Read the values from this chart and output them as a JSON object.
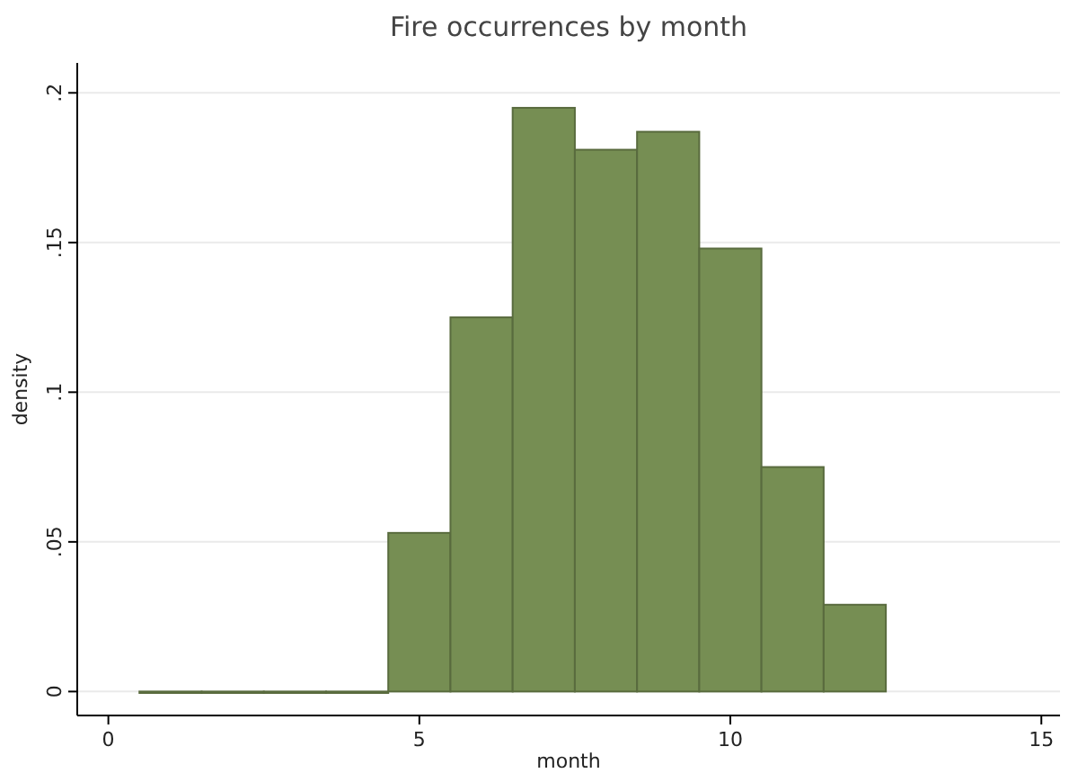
{
  "chart_data": {
    "type": "histogram",
    "title": "Fire occurrences by month",
    "xlabel": "month",
    "ylabel": "density",
    "bins": [
      0.5,
      1.5,
      2.5,
      3.5,
      4.5,
      5.5,
      6.5,
      7.5,
      8.5,
      9.5,
      10.5,
      11.5,
      12.5
    ],
    "values": [
      0,
      0,
      0,
      0,
      0.053,
      0.125,
      0.195,
      0.181,
      0.187,
      0.148,
      0.075,
      0.029
    ],
    "color": "#768e53",
    "xlim": [
      -0.5,
      15.3
    ],
    "ylim": [
      -0.008,
      0.21
    ],
    "xticks": [
      0,
      5,
      10,
      15
    ],
    "yticks": [
      {
        "value": 0,
        "label": "0"
      },
      {
        "value": 0.05,
        "label": ".05"
      },
      {
        "value": 0.1,
        "label": ".1"
      },
      {
        "value": 0.15,
        "label": ".15"
      },
      {
        "value": 0.2,
        "label": ".2"
      }
    ],
    "grid": "y"
  }
}
